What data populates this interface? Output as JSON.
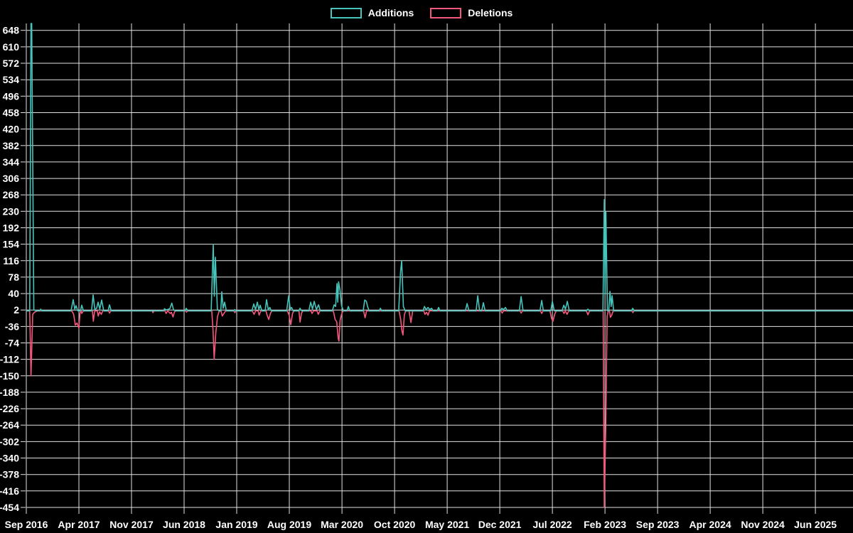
{
  "legend": {
    "additions_label": "Additions",
    "deletions_label": "Deletions"
  },
  "colors": {
    "background": "#000000",
    "grid": "#e2e2e2",
    "text": "#ffffff",
    "additions": "#46c4bb",
    "deletions": "#f3587c"
  },
  "chart_data": {
    "type": "line",
    "title": "",
    "xlabel": "",
    "ylabel": "",
    "grid": true,
    "legend_position": "top-center",
    "x_unit": "months since Sep 2016",
    "x_range_months": [
      0,
      110
    ],
    "y_range": [
      -459,
      664
    ],
    "x_tick_months": [
      0,
      7,
      14,
      21,
      28,
      35,
      42,
      49,
      56,
      63,
      70,
      77,
      84,
      91,
      98,
      105
    ],
    "x_tick_labels": [
      "Sep 2016",
      "Apr 2017",
      "Nov 2017",
      "Jun 2018",
      "Jan 2019",
      "Aug 2019",
      "Mar 2020",
      "Oct 2020",
      "May 2021",
      "Dec 2021",
      "Jul 2022",
      "Feb 2023",
      "Sep 2023",
      "Apr 2024",
      "Nov 2024",
      "Jun 2025"
    ],
    "y_ticks": [
      648,
      610,
      572,
      534,
      496,
      458,
      420,
      382,
      344,
      306,
      268,
      230,
      192,
      154,
      116,
      78,
      40,
      2,
      -36,
      -74,
      -112,
      -150,
      -188,
      -226,
      -264,
      -302,
      -340,
      -378,
      -416,
      -454
    ],
    "series": [
      {
        "name": "Additions",
        "color_key": "additions",
        "points": [
          [
            0,
            0
          ],
          [
            0.45,
            0
          ],
          [
            0.62,
            664
          ],
          [
            0.72,
            664
          ],
          [
            1.0,
            2
          ],
          [
            1.4,
            0
          ],
          [
            1.82,
            0
          ],
          [
            1.92,
            4
          ],
          [
            2.05,
            0
          ],
          [
            5.95,
            0
          ],
          [
            6.24,
            26
          ],
          [
            6.45,
            4
          ],
          [
            6.62,
            12
          ],
          [
            6.85,
            0
          ],
          [
            7.2,
            0
          ],
          [
            7.38,
            13
          ],
          [
            7.6,
            0
          ],
          [
            8.68,
            0
          ],
          [
            8.89,
            37
          ],
          [
            9.12,
            3
          ],
          [
            9.35,
            6
          ],
          [
            9.55,
            20
          ],
          [
            9.78,
            4
          ],
          [
            10.03,
            25
          ],
          [
            10.3,
            0
          ],
          [
            10.88,
            0
          ],
          [
            11.07,
            14
          ],
          [
            11.3,
            0
          ],
          [
            16.7,
            0
          ],
          [
            18.25,
            0
          ],
          [
            18.4,
            5
          ],
          [
            18.6,
            2
          ],
          [
            19.1,
            5
          ],
          [
            19.36,
            18
          ],
          [
            19.6,
            2
          ],
          [
            19.82,
            0
          ],
          [
            21.1,
            0
          ],
          [
            21.28,
            6
          ],
          [
            21.5,
            0
          ],
          [
            24.6,
            0
          ],
          [
            24.88,
            154
          ],
          [
            25.02,
            34
          ],
          [
            25.16,
            124
          ],
          [
            25.42,
            4
          ],
          [
            25.6,
            0
          ],
          [
            25.88,
            0
          ],
          [
            26.01,
            44
          ],
          [
            26.2,
            6
          ],
          [
            26.39,
            20
          ],
          [
            26.62,
            0
          ],
          [
            27.6,
            0
          ],
          [
            27.72,
            3
          ],
          [
            27.88,
            0
          ],
          [
            30.02,
            0
          ],
          [
            30.27,
            16
          ],
          [
            30.5,
            3
          ],
          [
            30.74,
            20
          ],
          [
            30.95,
            3
          ],
          [
            31.12,
            13
          ],
          [
            31.35,
            0
          ],
          [
            31.78,
            0
          ],
          [
            31.97,
            26
          ],
          [
            32.2,
            3
          ],
          [
            32.4,
            8
          ],
          [
            32.6,
            0
          ],
          [
            34.65,
            0
          ],
          [
            34.91,
            35
          ],
          [
            35.12,
            4
          ],
          [
            35.3,
            8
          ],
          [
            35.5,
            0
          ],
          [
            36.25,
            0
          ],
          [
            36.42,
            6
          ],
          [
            36.62,
            0
          ],
          [
            37.6,
            0
          ],
          [
            37.84,
            20
          ],
          [
            38.08,
            4
          ],
          [
            38.31,
            22
          ],
          [
            38.6,
            3
          ],
          [
            38.88,
            14
          ],
          [
            39.12,
            0
          ],
          [
            40.72,
            0
          ],
          [
            40.96,
            14
          ],
          [
            41.15,
            10
          ],
          [
            41.34,
            63
          ],
          [
            41.45,
            20
          ],
          [
            41.55,
            67
          ],
          [
            41.75,
            47
          ],
          [
            41.95,
            12
          ],
          [
            42.2,
            0
          ],
          [
            42.68,
            0
          ],
          [
            42.85,
            10
          ],
          [
            43.05,
            0
          ],
          [
            44.82,
            0
          ],
          [
            45.03,
            25
          ],
          [
            45.25,
            22
          ],
          [
            45.41,
            10
          ],
          [
            45.62,
            0
          ],
          [
            46.95,
            0
          ],
          [
            47.11,
            6
          ],
          [
            47.3,
            0
          ],
          [
            49.55,
            0
          ],
          [
            49.8,
            90
          ],
          [
            49.95,
            116
          ],
          [
            50.18,
            10
          ],
          [
            50.42,
            0
          ],
          [
            52.8,
            0
          ],
          [
            52.98,
            10
          ],
          [
            53.2,
            3
          ],
          [
            53.45,
            8
          ],
          [
            53.68,
            3
          ],
          [
            53.93,
            6
          ],
          [
            54.15,
            0
          ],
          [
            54.68,
            0
          ],
          [
            54.86,
            8
          ],
          [
            55.06,
            0
          ],
          [
            58.42,
            0
          ],
          [
            58.65,
            17
          ],
          [
            58.9,
            0
          ],
          [
            59.85,
            0
          ],
          [
            60.07,
            35
          ],
          [
            60.32,
            0
          ],
          [
            60.6,
            0
          ],
          [
            60.82,
            19
          ],
          [
            61.05,
            0
          ],
          [
            63.08,
            0
          ],
          [
            63.28,
            6
          ],
          [
            63.5,
            3
          ],
          [
            63.76,
            8
          ],
          [
            64.0,
            0
          ],
          [
            65.6,
            0
          ],
          [
            65.84,
            33
          ],
          [
            66.1,
            0
          ],
          [
            68.35,
            0
          ],
          [
            68.58,
            24
          ],
          [
            68.8,
            0
          ],
          [
            69.78,
            0
          ],
          [
            70.0,
            22
          ],
          [
            70.25,
            0
          ],
          [
            71.28,
            0
          ],
          [
            71.51,
            13
          ],
          [
            71.74,
            4
          ],
          [
            71.99,
            22
          ],
          [
            72.25,
            0
          ],
          [
            74.5,
            0
          ],
          [
            74.73,
            4
          ],
          [
            74.95,
            0
          ],
          [
            76.73,
            0
          ],
          [
            76.91,
            257
          ],
          [
            77.02,
            40
          ],
          [
            77.12,
            228
          ],
          [
            77.32,
            0
          ],
          [
            77.5,
            0
          ],
          [
            77.66,
            45
          ],
          [
            77.82,
            10
          ],
          [
            77.95,
            35
          ],
          [
            78.15,
            0
          ],
          [
            80.52,
            0
          ],
          [
            80.69,
            6
          ],
          [
            80.88,
            0
          ],
          [
            110.0,
            0
          ]
        ]
      },
      {
        "name": "Deletions",
        "color_key": "deletions",
        "points": [
          [
            0,
            0
          ],
          [
            0.45,
            0
          ],
          [
            0.62,
            -150
          ],
          [
            0.85,
            -8
          ],
          [
            1.1,
            -3
          ],
          [
            1.5,
            0
          ],
          [
            6.05,
            0
          ],
          [
            6.3,
            -8
          ],
          [
            6.53,
            -33
          ],
          [
            6.75,
            -28
          ],
          [
            7.0,
            -40
          ],
          [
            7.15,
            -5
          ],
          [
            7.3,
            0
          ],
          [
            7.38,
            -6
          ],
          [
            7.58,
            0
          ],
          [
            8.8,
            0
          ],
          [
            8.92,
            -24
          ],
          [
            9.1,
            0
          ],
          [
            9.45,
            0
          ],
          [
            9.57,
            -12
          ],
          [
            9.75,
            -2
          ],
          [
            9.98,
            -8
          ],
          [
            10.18,
            0
          ],
          [
            10.95,
            0
          ],
          [
            11.08,
            -5
          ],
          [
            11.25,
            0
          ],
          [
            16.75,
            0
          ],
          [
            16.85,
            -4
          ],
          [
            17.0,
            0
          ],
          [
            18.45,
            0
          ],
          [
            18.6,
            -6
          ],
          [
            18.8,
            0
          ],
          [
            19.15,
            -6
          ],
          [
            19.3,
            -3
          ],
          [
            19.52,
            -14
          ],
          [
            19.7,
            -3
          ],
          [
            19.85,
            0
          ],
          [
            21.2,
            0
          ],
          [
            21.32,
            -3
          ],
          [
            21.45,
            0
          ],
          [
            24.68,
            0
          ],
          [
            24.85,
            -45
          ],
          [
            25.0,
            -112
          ],
          [
            25.22,
            -50
          ],
          [
            25.45,
            -12
          ],
          [
            25.68,
            0
          ],
          [
            25.92,
            0
          ],
          [
            26.08,
            -12
          ],
          [
            26.3,
            -6
          ],
          [
            26.52,
            0
          ],
          [
            27.62,
            0
          ],
          [
            27.75,
            -4
          ],
          [
            27.9,
            0
          ],
          [
            30.08,
            0
          ],
          [
            30.3,
            -8
          ],
          [
            30.52,
            0
          ],
          [
            30.85,
            0
          ],
          [
            30.98,
            -10
          ],
          [
            31.2,
            0
          ],
          [
            31.88,
            0
          ],
          [
            32.08,
            -12
          ],
          [
            32.26,
            -20
          ],
          [
            32.48,
            -6
          ],
          [
            32.68,
            0
          ],
          [
            34.72,
            0
          ],
          [
            34.98,
            -10
          ],
          [
            35.19,
            -32
          ],
          [
            35.42,
            -6
          ],
          [
            35.6,
            0
          ],
          [
            36.28,
            0
          ],
          [
            36.42,
            -26
          ],
          [
            36.62,
            -5
          ],
          [
            36.8,
            0
          ],
          [
            37.88,
            0
          ],
          [
            38.02,
            -6
          ],
          [
            38.22,
            0
          ],
          [
            38.68,
            0
          ],
          [
            38.85,
            -8
          ],
          [
            39.05,
            0
          ],
          [
            40.85,
            0
          ],
          [
            41.1,
            -20
          ],
          [
            41.3,
            -25
          ],
          [
            41.5,
            -64
          ],
          [
            41.6,
            -70
          ],
          [
            41.75,
            -22
          ],
          [
            41.95,
            -8
          ],
          [
            42.15,
            0
          ],
          [
            44.88,
            0
          ],
          [
            45.08,
            -16
          ],
          [
            45.28,
            0
          ],
          [
            49.6,
            0
          ],
          [
            49.82,
            -20
          ],
          [
            49.98,
            -46
          ],
          [
            50.12,
            -56
          ],
          [
            50.3,
            -10
          ],
          [
            50.48,
            0
          ],
          [
            50.92,
            0
          ],
          [
            51.18,
            -27
          ],
          [
            51.42,
            0
          ],
          [
            52.88,
            0
          ],
          [
            53.05,
            -8
          ],
          [
            53.25,
            -3
          ],
          [
            53.45,
            -10
          ],
          [
            53.65,
            0
          ],
          [
            63.15,
            0
          ],
          [
            63.32,
            -5
          ],
          [
            63.5,
            0
          ],
          [
            65.7,
            0
          ],
          [
            65.84,
            -5
          ],
          [
            66.02,
            0
          ],
          [
            68.42,
            0
          ],
          [
            68.58,
            -6
          ],
          [
            68.75,
            0
          ],
          [
            69.68,
            0
          ],
          [
            69.9,
            -18
          ],
          [
            70.08,
            -24
          ],
          [
            70.32,
            -7
          ],
          [
            70.52,
            0
          ],
          [
            71.35,
            0
          ],
          [
            71.55,
            -6
          ],
          [
            71.72,
            0
          ],
          [
            71.95,
            -8
          ],
          [
            72.18,
            0
          ],
          [
            74.52,
            0
          ],
          [
            74.73,
            -9
          ],
          [
            74.95,
            0
          ],
          [
            76.75,
            0
          ],
          [
            76.91,
            -454
          ],
          [
            77.1,
            -266
          ],
          [
            77.28,
            -12
          ],
          [
            77.45,
            0
          ],
          [
            77.6,
            0
          ],
          [
            77.72,
            -15
          ],
          [
            77.9,
            -10
          ],
          [
            78.08,
            0
          ],
          [
            80.58,
            0
          ],
          [
            80.72,
            -4
          ],
          [
            80.86,
            0
          ],
          [
            110.0,
            0
          ]
        ]
      }
    ]
  }
}
